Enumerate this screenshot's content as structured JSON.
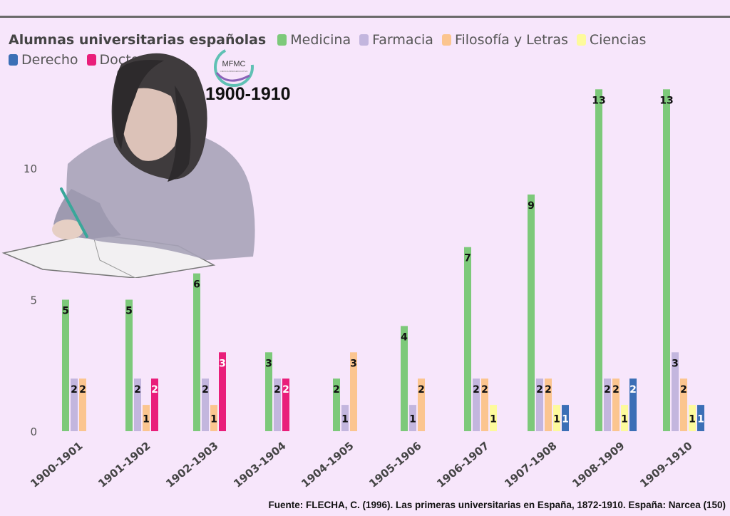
{
  "overlay": {
    "title": "1900-1910",
    "logo_text": "MFMC",
    "logo_subtext": "CIENCIASPARAEDUCATIVA"
  },
  "source": "Fuente: FLECHA, C. (1996). Las primeras universitarias en España, 1872-1910. España: Narcea (150)",
  "chart_data": {
    "type": "bar",
    "title": "Alumnas universitarias españolas",
    "categories": [
      "1900-1901",
      "1901-1902",
      "1902-1903",
      "1903-1904",
      "1904-1905",
      "1905-1906",
      "1906-1907",
      "1907-1908",
      "1908-1909",
      "1909-1910"
    ],
    "ylim": [
      0,
      14
    ],
    "yticks": [
      0,
      5,
      10
    ],
    "grid": false,
    "legend_position": "top-left",
    "series": [
      {
        "name": "Medicina",
        "color": "#7dc97a",
        "values": [
          5,
          5,
          6,
          3,
          2,
          4,
          7,
          9,
          13,
          13
        ]
      },
      {
        "name": "Farmacia",
        "color": "#c3b6de",
        "values": [
          2,
          2,
          2,
          2,
          1,
          1,
          2,
          2,
          2,
          3
        ]
      },
      {
        "name": "Filosofía y Letras",
        "color": "#fbc58f",
        "values": [
          2,
          1,
          1,
          null,
          3,
          2,
          2,
          2,
          2,
          2
        ]
      },
      {
        "name": "Ciencias",
        "color": "#fdfa9c",
        "values": [
          null,
          null,
          null,
          null,
          null,
          null,
          1,
          1,
          1,
          1
        ]
      },
      {
        "name": "Derecho",
        "color": "#3b6fb6",
        "values": [
          null,
          null,
          null,
          null,
          null,
          null,
          null,
          1,
          2,
          1
        ]
      },
      {
        "name": "Doctorado",
        "color": "#e91e7a",
        "values": [
          null,
          2,
          3,
          2,
          null,
          null,
          null,
          null,
          null,
          null
        ]
      }
    ]
  }
}
